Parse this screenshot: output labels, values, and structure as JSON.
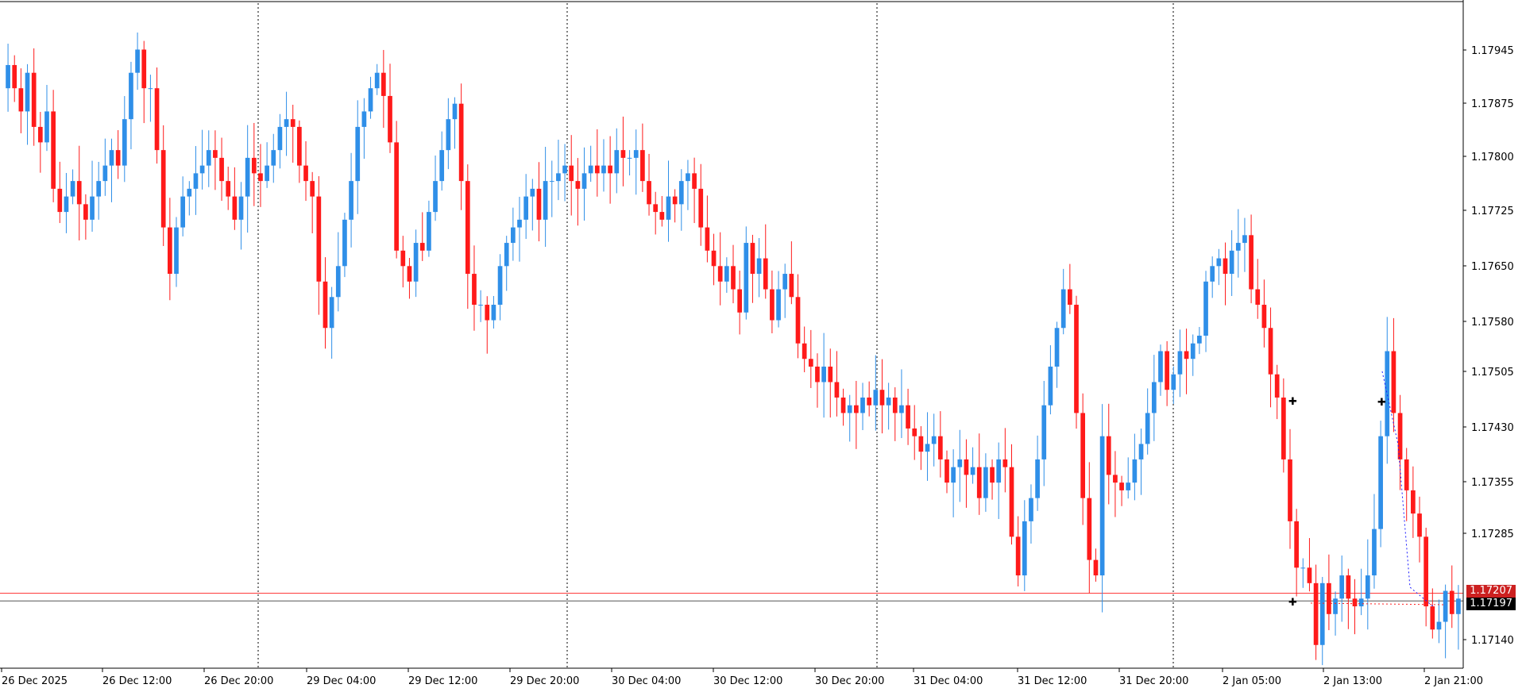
{
  "colors": {
    "background": "#ffffff",
    "bull": "#2f8fe8",
    "bear": "#ff1a1a",
    "axis": "#000000",
    "ask_line": "#ff3b3b",
    "bid_line": "#555555",
    "ask_tag_bg": "#cc2020",
    "bid_tag_bg": "#000000",
    "marker_blue": "#1a1aff",
    "marker_red": "#ff2020",
    "marker_yellow": "#ffe000"
  },
  "price_tags": {
    "ask": "1.17207",
    "bid": "1.17197"
  },
  "chart_data": {
    "type": "candlestick",
    "symbol_timeframe_hours": 1,
    "ylim": [
      1.1711,
      1.1797
    ],
    "yticks": [
      "1.17945",
      "1.17875",
      "1.17800",
      "1.17725",
      "1.17650",
      "1.17580",
      "1.17505",
      "1.17430",
      "1.17355",
      "1.17285",
      "1.17140"
    ],
    "xticks": [
      "26 Dec 2025",
      "26 Dec 12:00",
      "26 Dec 20:00",
      "29 Dec 04:00",
      "29 Dec 12:00",
      "29 Dec 20:00",
      "30 Dec 04:00",
      "30 Dec 12:00",
      "30 Dec 20:00",
      "31 Dec 04:00",
      "31 Dec 12:00",
      "31 Dec 20:00",
      "2 Jan 05:00",
      "2 Jan 13:00",
      "2 Jan 21:00"
    ],
    "ask": 1.17207,
    "bid": 1.17197,
    "session_separators": [
      "26 Dec 20:00",
      "29 Dec 20:00",
      "30 Dec 20:00",
      "31 Dec 20:00"
    ],
    "closes": [
      1.1789,
      1.1786,
      1.1783,
      1.1788,
      1.1781,
      1.1779,
      1.1783,
      1.1773,
      1.177,
      1.1772,
      1.1774,
      1.1771,
      1.1769,
      1.1772,
      1.1774,
      1.1776,
      1.1778,
      1.1776,
      1.1782,
      1.1788,
      1.1791,
      1.1786,
      1.1786,
      1.1778,
      1.1768,
      1.1762,
      1.1768,
      1.1772,
      1.1773,
      1.1775,
      1.1776,
      1.1778,
      1.1777,
      1.1774,
      1.1772,
      1.1769,
      1.1772,
      1.1777,
      1.1775,
      1.1774,
      1.1776,
      1.1778,
      1.1781,
      1.1782,
      1.1781,
      1.1776,
      1.1774,
      1.1772,
      1.1761,
      1.1755,
      1.1759,
      1.1763,
      1.1769,
      1.1774,
      1.1781,
      1.1783,
      1.1786,
      1.1788,
      1.1785,
      1.1779,
      1.1765,
      1.1763,
      1.1761,
      1.1766,
      1.1765,
      1.177,
      1.1774,
      1.1778,
      1.1782,
      1.1784,
      1.1774,
      1.1762,
      1.1758,
      1.1758,
      1.1756,
      1.1758,
      1.1763,
      1.1766,
      1.1768,
      1.1769,
      1.1772,
      1.1773,
      1.1769,
      1.1774,
      1.1774,
      1.1775,
      1.1776,
      1.1774,
      1.1773,
      1.1775,
      1.1776,
      1.1775,
      1.1776,
      1.1775,
      1.1778,
      1.1777,
      1.1777,
      1.1778,
      1.1774,
      1.1771,
      1.177,
      1.1769,
      1.1772,
      1.1771,
      1.1774,
      1.1775,
      1.1773,
      1.1768,
      1.1765,
      1.1763,
      1.1761,
      1.1763,
      1.176,
      1.1757,
      1.1766,
      1.1762,
      1.1764,
      1.176,
      1.1756,
      1.176,
      1.1762,
      1.1759,
      1.1753,
      1.1751,
      1.175,
      1.1748,
      1.175,
      1.1748,
      1.1746,
      1.1744,
      1.1745,
      1.1744,
      1.1746,
      1.1745,
      1.1747,
      1.1745,
      1.1746,
      1.1744,
      1.1745,
      1.1742,
      1.1741,
      1.1739,
      1.174,
      1.1741,
      1.1738,
      1.1735,
      1.1737,
      1.1738,
      1.1736,
      1.1737,
      1.1733,
      1.1737,
      1.1735,
      1.1738,
      1.1737,
      1.1728,
      1.1723,
      1.173,
      1.1733,
      1.1738,
      1.1745,
      1.175,
      1.1755,
      1.176,
      1.1758,
      1.1744,
      1.1733,
      1.1725,
      1.1723,
      1.1741,
      1.1736,
      1.1735,
      1.1734,
      1.1735,
      1.1738,
      1.174,
      1.1744,
      1.1748,
      1.1752,
      1.1747,
      1.1749,
      1.1752,
      1.1751,
      1.1753,
      1.1754,
      1.1761,
      1.1763,
      1.1764,
      1.1762,
      1.1765,
      1.1766,
      1.1767,
      1.176,
      1.1758,
      1.1755,
      1.1749,
      1.1746,
      1.1738,
      1.173,
      1.1724,
      1.1724,
      1.1722,
      1.1714,
      1.1722,
      1.1718,
      1.172,
      1.1723,
      1.172,
      1.1719,
      1.172,
      1.1723,
      1.1729,
      1.1741,
      1.1752,
      1.1744,
      1.1738,
      1.1734,
      1.1731,
      1.1728,
      1.1719,
      1.1716,
      1.1717,
      1.1721,
      1.1718,
      1.172
    ]
  }
}
